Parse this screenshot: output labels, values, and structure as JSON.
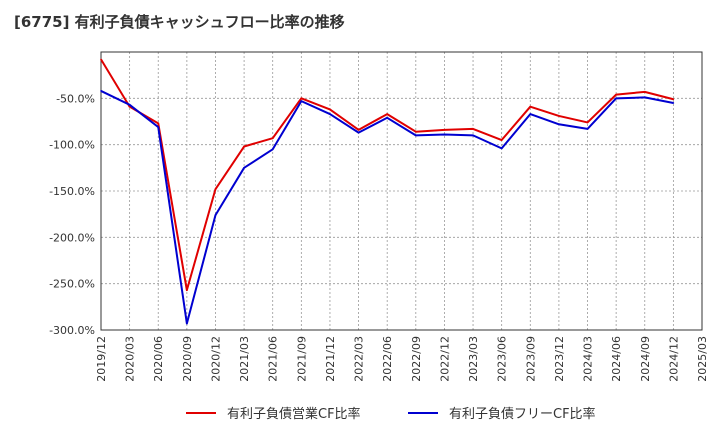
{
  "chart_data": {
    "type": "line",
    "title": "[6775]  有利子負債キャッシュフロー比率の推移",
    "xlabel": "",
    "ylabel": "",
    "ylim": [
      -300,
      0
    ],
    "x_ticks": [
      "2019/12",
      "2020/03",
      "2020/06",
      "2020/09",
      "2020/12",
      "2021/03",
      "2021/06",
      "2021/09",
      "2021/12",
      "2022/03",
      "2022/06",
      "2022/09",
      "2022/12",
      "2023/03",
      "2023/06",
      "2023/09",
      "2023/12",
      "2024/03",
      "2024/06",
      "2024/09",
      "2024/12",
      "2025/03"
    ],
    "y_ticks": [
      -50,
      -100,
      -150,
      -200,
      -250,
      -300
    ],
    "y_tick_labels": [
      "-50.0%",
      "-100.0%",
      "-150.0%",
      "-200.0%",
      "-250.0%",
      "-300.0%"
    ],
    "grid": true,
    "legend_position": "bottom",
    "series": [
      {
        "name": "有利子負債営業CF比率",
        "color": "#e00000",
        "x": [
          "2019/12",
          "2020/03",
          "2020/06",
          "2020/09",
          "2020/12",
          "2021/03",
          "2021/06",
          "2021/09",
          "2021/12",
          "2022/03",
          "2022/06",
          "2022/09",
          "2022/12",
          "2023/03",
          "2023/06",
          "2023/09",
          "2023/12",
          "2024/03",
          "2024/06",
          "2024/09",
          "2024/12"
        ],
        "values": [
          -8,
          -59,
          -77,
          -257,
          -148,
          -102,
          -93,
          -50,
          -62,
          -84,
          -67,
          -86,
          -84,
          -83,
          -95,
          -59,
          -69,
          -76,
          -46,
          -43,
          -51
        ]
      },
      {
        "name": "有利子負債フリーCF比率",
        "color": "#0000d0",
        "x": [
          "2019/12",
          "2020/03",
          "2020/06",
          "2020/09",
          "2020/12",
          "2021/03",
          "2021/06",
          "2021/09",
          "2021/12",
          "2022/03",
          "2022/06",
          "2022/09",
          "2022/12",
          "2023/03",
          "2023/06",
          "2023/09",
          "2023/12",
          "2024/03",
          "2024/06",
          "2024/09",
          "2024/12"
        ],
        "values": [
          -42,
          -57,
          -81,
          -293,
          -176,
          -125,
          -105,
          -53,
          -67,
          -87,
          -71,
          -90,
          -89,
          -90,
          -104,
          -67,
          -78,
          -83,
          -50,
          -49,
          -55
        ]
      }
    ]
  }
}
